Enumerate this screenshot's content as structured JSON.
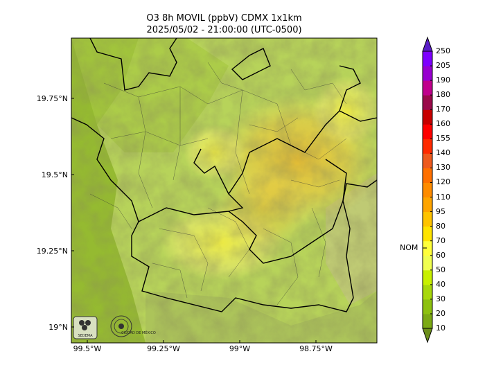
{
  "title": {
    "line1": "O3 8h MOVIL (ppbV) CDMX 1x1km",
    "line2": "2025/05/02 - 21:00:00 (UTC-0500)"
  },
  "axes": {
    "y_ticks": [
      "19.75°N",
      "19.5°N",
      "19.25°N",
      "19°N"
    ],
    "x_ticks": [
      "99.5°W",
      "99.25°W",
      "99°W",
      "98.75°W"
    ]
  },
  "colorbar": {
    "levels": [
      "10",
      "20",
      "30",
      "40",
      "50",
      "60",
      "70",
      "80",
      "95",
      "110",
      "120",
      "130",
      "140",
      "155",
      "160",
      "170",
      "180",
      "190",
      "205",
      "250"
    ],
    "colors": [
      "#6b8e1a",
      "#7caa14",
      "#8dc10f",
      "#a8d80c",
      "#c8f000",
      "#f0ff50",
      "#ffff3a",
      "#ffe400",
      "#ffc400",
      "#ffa500",
      "#ff8c00",
      "#ff7000",
      "#ee5a1e",
      "#ff2a00",
      "#ff0000",
      "#c80000",
      "#9a0a4a",
      "#c0008c",
      "#9800d0",
      "#7e00ff",
      "#5a1ec8"
    ],
    "nom_label": "NOM",
    "nom_value": 70
  },
  "logos": {
    "left": "SEDEMA",
    "right": "CIUDAD DE MÉXICO"
  }
}
